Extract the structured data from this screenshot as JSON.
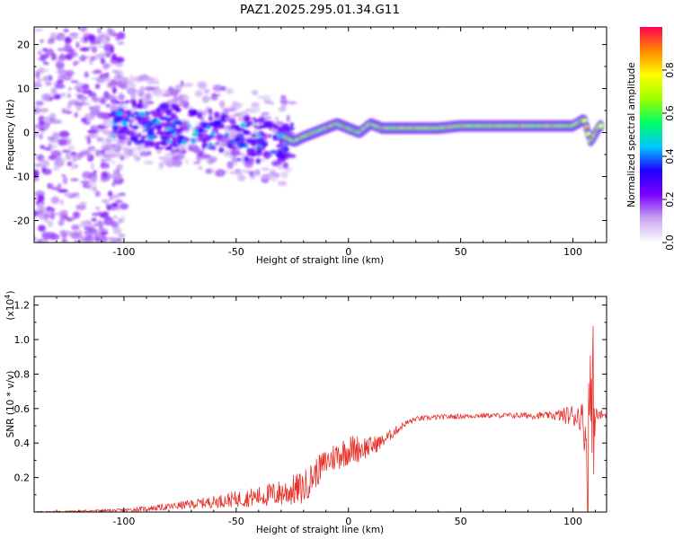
{
  "title": "PAZ1.2025.295.01.34.G11",
  "chart_data": [
    {
      "type": "heatmap",
      "name": "spectrogram",
      "xlabel": "Height of straight line (km)",
      "ylabel": "Frequency (Hz)",
      "xlim": [
        -140,
        115
      ],
      "ylim": [
        -25,
        24
      ],
      "xticks": [
        -100,
        -50,
        0,
        50,
        100
      ],
      "yticks": [
        -20,
        -10,
        0,
        10,
        20
      ],
      "colorbar": {
        "label": "Normalized spectral amplitude",
        "range": [
          0,
          1
        ],
        "ticks": [
          0.0,
          0.2,
          0.4,
          0.6,
          0.8
        ],
        "colors": [
          "#ffffff",
          "#c8a6f2",
          "#7a00ff",
          "#2000ff",
          "#00c8ff",
          "#00ff64",
          "#9cff00",
          "#ffff00",
          "#ff8800",
          "#ff0050"
        ]
      },
      "ridge": {
        "x": [
          -28,
          -24,
          -20,
          -15,
          -10,
          -5,
          0,
          5,
          10,
          15,
          20,
          30,
          40,
          50,
          60,
          70,
          80,
          90,
          100,
          105,
          108,
          112
        ],
        "freq": [
          -1,
          -2,
          -1,
          0,
          1,
          2,
          1,
          0,
          2,
          1,
          1,
          1,
          1,
          1.5,
          1.5,
          1.5,
          1.5,
          1.5,
          1.5,
          3,
          -2,
          1.5
        ]
      }
    },
    {
      "type": "line",
      "name": "snr",
      "xlabel": "Height of straight line (km)",
      "ylabel": "SNR (10 * v/v)",
      "scale_label": "(x10",
      "scale_exp": "4",
      "scale_close": ")",
      "xlim": [
        -140,
        115
      ],
      "ylim": [
        0,
        1.25
      ],
      "xticks": [
        -100,
        -50,
        0,
        50,
        100
      ],
      "yticks": [
        0.2,
        0.4,
        0.6,
        0.8,
        1.0,
        1.2
      ],
      "color": "#e8302a",
      "envelope": {
        "x": [
          -140,
          -120,
          -100,
          -80,
          -60,
          -40,
          -30,
          -20,
          -15,
          -10,
          -5,
          0,
          5,
          10,
          15,
          20,
          25,
          30,
          40,
          50,
          60,
          70,
          80,
          90,
          95,
          100,
          103,
          105,
          107,
          109,
          110,
          115
        ],
        "mean": [
          0.0,
          0.005,
          0.01,
          0.03,
          0.06,
          0.09,
          0.11,
          0.14,
          0.22,
          0.29,
          0.33,
          0.36,
          0.37,
          0.38,
          0.41,
          0.46,
          0.51,
          0.54,
          0.55,
          0.555,
          0.56,
          0.56,
          0.56,
          0.56,
          0.56,
          0.56,
          0.56,
          0.5,
          0.3,
          0.6,
          0.56,
          0.56
        ],
        "amp": [
          0.004,
          0.006,
          0.01,
          0.02,
          0.035,
          0.06,
          0.08,
          0.1,
          0.09,
          0.08,
          0.09,
          0.09,
          0.08,
          0.06,
          0.04,
          0.03,
          0.02,
          0.015,
          0.015,
          0.015,
          0.015,
          0.015,
          0.02,
          0.02,
          0.04,
          0.07,
          0.08,
          0.15,
          0.2,
          0.5,
          0.05,
          0.02
        ]
      }
    }
  ]
}
